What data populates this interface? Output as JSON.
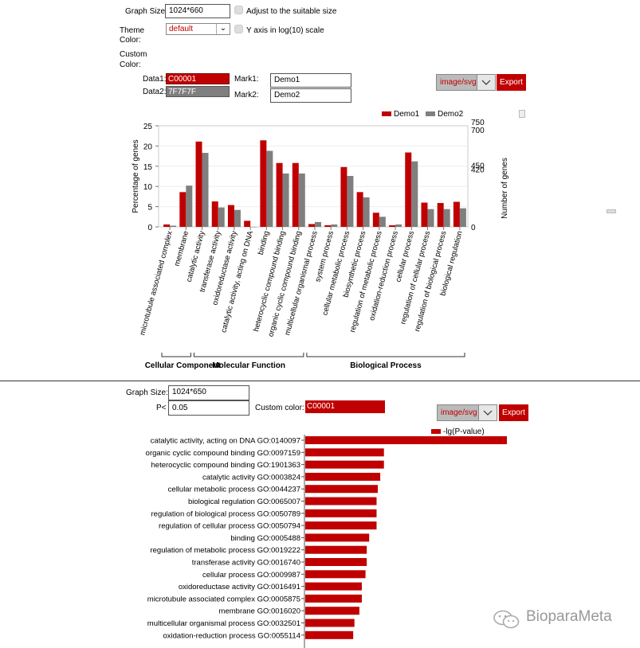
{
  "panel1": {
    "graph_size_label": "Graph Size:",
    "graph_size_value": "1024*660",
    "adjust_label": "Adjust to the suitable size",
    "theme_label_1": "Theme",
    "theme_label_2": "Color:",
    "theme_value": "default",
    "log_label": "Y axis in log(10) scale",
    "custom_label_1": "Custom",
    "custom_label_2": "Color:",
    "data1_label": "Data1:",
    "data1_color": "C00001",
    "data2_label": "Data2:",
    "data2_color": "7F7F7F",
    "mark1_label": "Mark1:",
    "mark1_value": "Demo1",
    "mark2_label": "Mark2:",
    "mark2_value": "Demo2",
    "format_value": "image/svg",
    "export_label": "Export"
  },
  "panel2": {
    "graph_size_label": "Graph Size:",
    "graph_size_value": "1024*650",
    "p_label": "P<",
    "p_value": "0.05",
    "custom_color_label": "Custom color:",
    "custom_color_value": "C00001",
    "format_value": "image/svg",
    "export_label": "Export"
  },
  "watermark": "BioparaMeta",
  "colors": {
    "accent": "#c00000",
    "series2": "#7f7f7f"
  },
  "chart_data": [
    {
      "type": "bar",
      "ylabel": "Percentage of genes",
      "ylabel_right": "Number of genes",
      "ylim": [
        0,
        25
      ],
      "yticks": [
        0,
        5,
        10,
        15,
        20,
        25
      ],
      "right_ticks": [
        "0",
        "420",
        "450",
        "700",
        "750"
      ],
      "categories": [
        "microtubule associated complex",
        "membrane",
        "catalytic activity",
        "transferase activity",
        "oxidoreductase activity",
        "catalytic activity, acting on DNA",
        "binding",
        "heterocyclic compound binding",
        "organic cyclic compound binding",
        "multicellular organismal process",
        "system process",
        "cellular metabolic process",
        "biosynthetic process",
        "regulation of metabolic process",
        "oxidation-reduction process",
        "cellular process",
        "regulation of cellular process",
        "regulation of biological process",
        "biological regulation"
      ],
      "series": [
        {
          "name": "Demo1",
          "values": [
            0.6,
            8.6,
            21.1,
            6.3,
            5.4,
            1.5,
            21.4,
            15.8,
            15.8,
            0.7,
            0.4,
            14.8,
            8.6,
            3.5,
            0.4,
            18.4,
            6.0,
            5.9,
            6.2
          ]
        },
        {
          "name": "Demo2",
          "values": [
            0.3,
            10.2,
            18.3,
            4.8,
            4.2,
            0.0,
            18.8,
            13.2,
            13.2,
            1.2,
            0.6,
            12.6,
            7.3,
            2.5,
            0.6,
            16.2,
            4.4,
            4.4,
            4.6
          ]
        }
      ],
      "groups": [
        {
          "name": "Cellular Component",
          "start": 0,
          "end": 1
        },
        {
          "name": "Molecular Function",
          "start": 2,
          "end": 8
        },
        {
          "name": "Biological Process",
          "start": 9,
          "end": 18
        }
      ],
      "legend": "top-right"
    },
    {
      "type": "bar",
      "orientation": "horizontal",
      "legend": "-lg(P-value)",
      "categories": [
        "catalytic activity, acting on DNA GO:0140097",
        "organic cyclic compound binding GO:0097159",
        "heterocyclic compound binding GO:1901363",
        "catalytic activity GO:0003824",
        "cellular metabolic process GO:0044237",
        "biological regulation GO:0065007",
        "regulation of biological process GO:0050789",
        "regulation of cellular process GO:0050794",
        "binding GO:0005488",
        "regulation of metabolic process GO:0019222",
        "transferase activity GO:0016740",
        "cellular process GO:0009987",
        "oxidoreductase activity GO:0016491",
        "microtubule associated complex GO:0005875",
        "membrane GO:0016020",
        "multicellular organismal process GO:0032501",
        "oxidation-reduction process GO:0055114"
      ],
      "values": [
        8.2,
        3.2,
        3.2,
        3.05,
        2.95,
        2.9,
        2.9,
        2.9,
        2.6,
        2.5,
        2.5,
        2.45,
        2.3,
        2.3,
        2.2,
        2.0,
        1.95
      ]
    }
  ]
}
